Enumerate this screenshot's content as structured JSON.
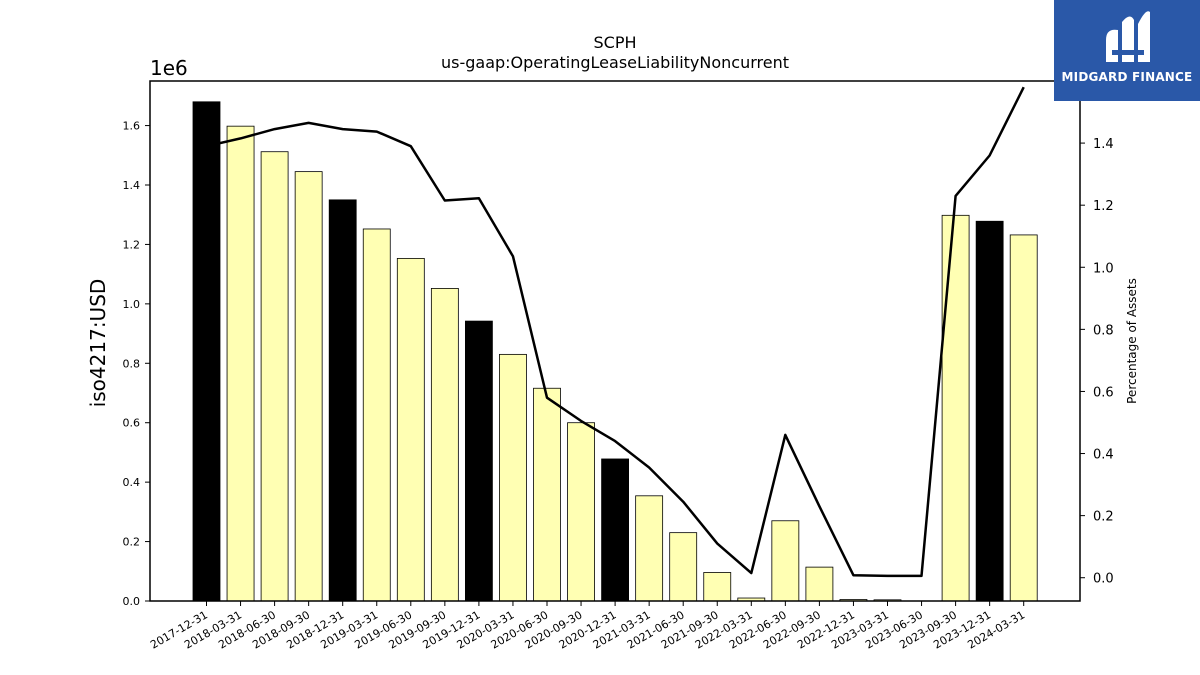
{
  "chart_data": {
    "type": "bar",
    "title": "SCPH",
    "subtitle": "us-gaap:OperatingLeaseLiabilityNoncurrent",
    "ylabel": "iso4217:USD",
    "y_offset_label": "1e6",
    "y2label": "Percentage of Assets",
    "ylim": [
      0,
      1750000
    ],
    "y2lim": [
      -0.075,
      1.6
    ],
    "y_ticks": [
      "0.0",
      "0.2",
      "0.4",
      "0.6",
      "0.8",
      "1.0",
      "1.2",
      "1.4",
      "1.6"
    ],
    "y2_ticks": [
      "0.0",
      "0.2",
      "0.4",
      "0.6",
      "0.8",
      "1.0",
      "1.2",
      "1.4"
    ],
    "categories": [
      "2017-12-31",
      "2018-03-31",
      "2018-06-30",
      "2018-09-30",
      "2018-12-31",
      "2019-03-31",
      "2019-06-30",
      "2019-09-30",
      "2019-12-31",
      "2020-03-31",
      "2020-06-30",
      "2020-09-30",
      "2020-12-31",
      "2021-03-31",
      "2021-06-30",
      "2021-09-30",
      "2022-03-31",
      "2022-06-30",
      "2022-09-30",
      "2022-12-31",
      "2023-03-31",
      "2023-06-30",
      "2023-09-30",
      "2023-12-31",
      "2024-03-31"
    ],
    "series": [
      {
        "kind": "bar",
        "values": [
          1680000,
          1598000,
          1512000,
          1445000,
          1350000,
          1252000,
          1153000,
          1052000,
          942000,
          830000,
          716000,
          600000,
          478000,
          354000,
          230000,
          96000,
          10000,
          270000,
          114000,
          5000,
          4000,
          0,
          1298000,
          1278000,
          1232000
        ],
        "highlight": [
          true,
          false,
          false,
          false,
          true,
          false,
          false,
          false,
          true,
          false,
          false,
          false,
          true,
          false,
          false,
          false,
          false,
          false,
          false,
          false,
          false,
          false,
          false,
          true,
          false
        ],
        "color": "#ffffb3",
        "highlight_color": "#000000"
      },
      {
        "kind": "line",
        "axis": "right",
        "values": [
          1.39,
          1.415,
          1.445,
          1.465,
          1.445,
          1.437,
          1.39,
          1.215,
          1.222,
          1.035,
          0.58,
          0.505,
          0.44,
          0.355,
          0.245,
          0.11,
          0.015,
          0.46,
          0.23,
          0.008,
          0.006,
          0.006,
          1.23,
          1.36,
          1.58
        ],
        "color": "#000000"
      }
    ]
  },
  "logo": {
    "text": "MIDGARD FINANCE"
  }
}
